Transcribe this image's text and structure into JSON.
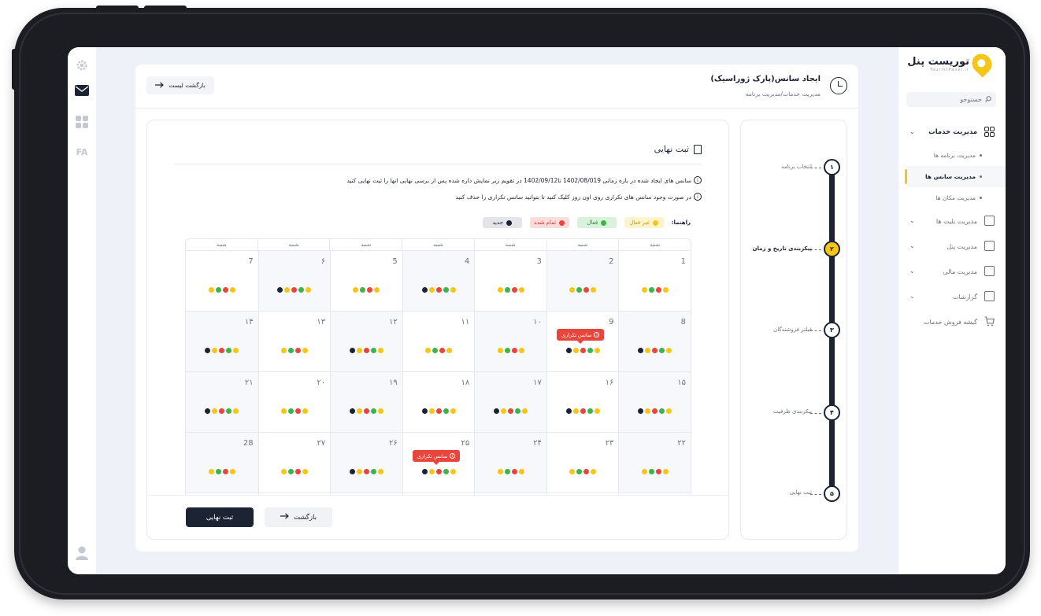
{
  "sidebar": {
    "logo_text": "توریست پنل",
    "logo_sub": "TouristPanel.ir",
    "search_placeholder": "جستوجو",
    "menu": [
      {
        "label": "مدیریت خدمات",
        "icon": "grid-icon",
        "expanded": true
      },
      {
        "label": "مدیریت بلیت ها",
        "icon": "ticket-icon"
      },
      {
        "label": "مدیریت پنل",
        "icon": "monitor-icon"
      },
      {
        "label": "مدیریت مالی",
        "icon": "wallet-icon"
      },
      {
        "label": "گزارشات",
        "icon": "chart-icon"
      },
      {
        "label": "گیشه فروش خدمات",
        "icon": "cart-icon"
      }
    ],
    "sub_items": [
      "مدیریت برنامه ها",
      "مدیریت سانس ها",
      "مدیریت مکان ها"
    ]
  },
  "rail": {
    "lang": "FA"
  },
  "header": {
    "title": "ایجاد سانس(پارک ژوراسیک)",
    "breadcrumb": "مدیریت خدمات/مدیریت برنامه",
    "back_list": "بازگشت لیست"
  },
  "steps": [
    {
      "num": "۱",
      "label": "انتخاب برنامه"
    },
    {
      "num": "۲",
      "label": "پیکربندی تاریخ و زمان",
      "current": true
    },
    {
      "num": "۳",
      "label": "فیلتر فروشندگان"
    },
    {
      "num": "۴",
      "label": "پیکربندی ظرفیت"
    },
    {
      "num": "۵",
      "label": "ثبت نهایی"
    }
  ],
  "content": {
    "title": "ثبت نهایی",
    "info1": "سانس های ایجاد شده در بازه زمانی 1402/08/019 تا1402/09/12 در تقویم زیر نمایش داره شده پس از برسی نهایی انها را ثبت نهایی کنید",
    "info2": "در صورت وجود سانس های تکراری روی اون روز کلیک کنید تا بتوانید سانس تکراری را حذف کنید",
    "legend_title": "راهنما:",
    "legend": [
      {
        "label": "غیر فعال",
        "color": "#f5c518",
        "bg": "#fdf3cc",
        "text": "#c9a20c"
      },
      {
        "label": "فعال",
        "color": "#3cb44b",
        "bg": "#d9f2dc",
        "text": "#2e8a39"
      },
      {
        "label": "تمام شده",
        "color": "#e8453c",
        "bg": "#fbdcda",
        "text": "#d23b33"
      },
      {
        "label": "جدید",
        "color": "#1c2333",
        "bg": "#e4e5e8",
        "text": "#1c2333"
      }
    ],
    "weekday": "شنبه",
    "tooltip": "سانس تکراری",
    "days": [
      "1",
      "2",
      "3",
      "4",
      "5",
      "۶",
      "7",
      "8",
      "9",
      "۱۰",
      "۱۱",
      "۱۲",
      "۱۳",
      "۱۴",
      "۱۵",
      "۱۶",
      "۱۷",
      "۱۸",
      "۱۹",
      "۲۰",
      "۲۱",
      "۲۲",
      "۲۳",
      "۲۴",
      "۲۵",
      "۲۶",
      "۲۷",
      "28"
    ],
    "btn_final": "ثبت نهایی",
    "btn_back": "بازگشت"
  },
  "colors": {
    "yellow": "#f5c518",
    "green": "#3cb44b",
    "red": "#e8453c",
    "navy": "#1c2333"
  }
}
